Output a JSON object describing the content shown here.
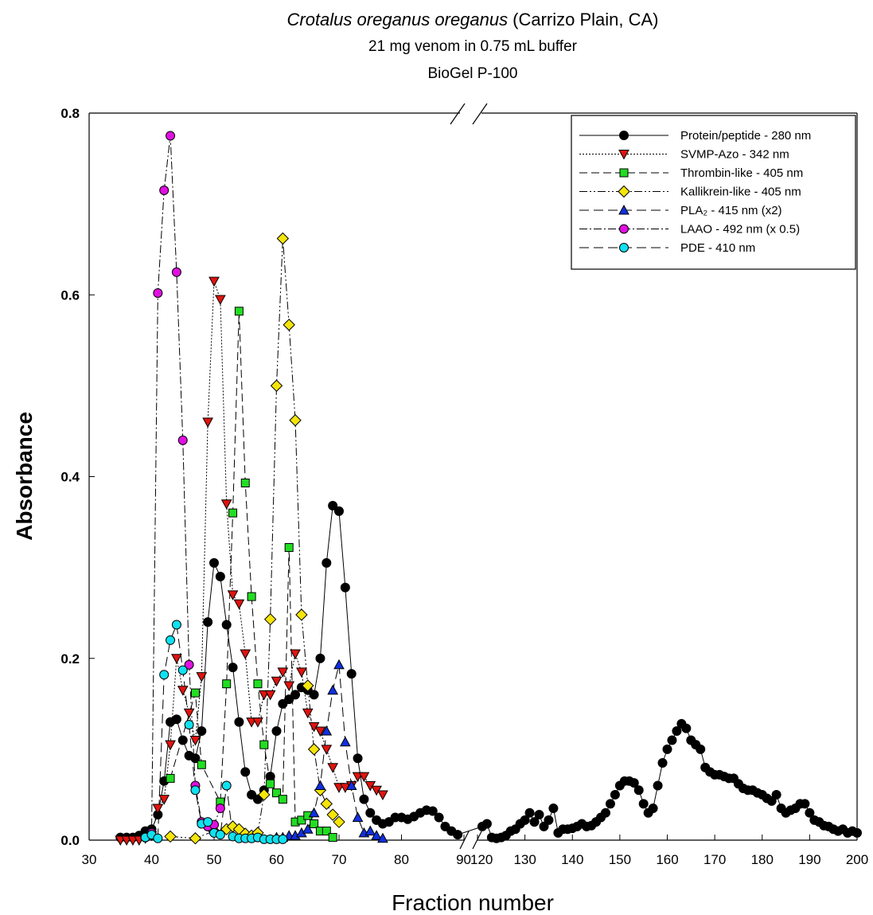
{
  "chart_data": {
    "type": "line",
    "title": [
      "Crotalus oreganus oreganus",
      "(Carrizo Plain, CA)"
    ],
    "subtitle": [
      "21 mg venom in 0.75 mL buffer",
      "BioGel P-100"
    ],
    "x_label": "Fraction number",
    "y_label": "Absorbance",
    "xlim": [
      30,
      200
    ],
    "x_break": [
      90,
      120
    ],
    "xticks": [
      30,
      40,
      50,
      60,
      70,
      80,
      90,
      120,
      130,
      140,
      150,
      160,
      170,
      180,
      190,
      200
    ],
    "ylim": [
      0,
      0.8
    ],
    "yticks": [
      {
        "value": 0,
        "label": "0.0"
      },
      0.2,
      0.4,
      0.6,
      0.8
    ],
    "legend": "upper right",
    "series": [
      {
        "name": "Protein/peptide - 280 nm",
        "color": "#000000",
        "marker": "circle",
        "dash": "none",
        "x": [
          35,
          36,
          37,
          38,
          39,
          40,
          41,
          42,
          43,
          44,
          45,
          46,
          47,
          48,
          49,
          50,
          51,
          52,
          53,
          54,
          55,
          56,
          57,
          58,
          59,
          60,
          61,
          62,
          63,
          64,
          65,
          66,
          67,
          68,
          69,
          70,
          71,
          72,
          73,
          74,
          75,
          76,
          77,
          78,
          79,
          80,
          81,
          82,
          83,
          84,
          85,
          86,
          87,
          88,
          89,
          121,
          122,
          123,
          124,
          125,
          126,
          127,
          128,
          129,
          130,
          131,
          132,
          133,
          134,
          135,
          136,
          137,
          138,
          139,
          140,
          141,
          142,
          143,
          144,
          145,
          146,
          147,
          148,
          149,
          150,
          151,
          152,
          153,
          154,
          155,
          156,
          157,
          158,
          159,
          160,
          161,
          162,
          163,
          164,
          165,
          166,
          167,
          168,
          169,
          170,
          171,
          172,
          173,
          174,
          175,
          176,
          177,
          178,
          179,
          180,
          181,
          182,
          183,
          184,
          185,
          186,
          187,
          188,
          189,
          190,
          191,
          192,
          193,
          194,
          195,
          196,
          197,
          198,
          199,
          200
        ],
        "values": [
          0.003,
          0.003,
          0.003,
          0.005,
          0.01,
          0.012,
          0.028,
          0.065,
          0.13,
          0.133,
          0.11,
          0.093,
          0.09,
          0.12,
          0.24,
          0.305,
          0.29,
          0.237,
          0.19,
          0.13,
          0.075,
          0.05,
          0.045,
          0.055,
          0.07,
          0.12,
          0.15,
          0.155,
          0.16,
          0.168,
          0.165,
          0.16,
          0.2,
          0.305,
          0.368,
          0.362,
          0.278,
          0.183,
          0.09,
          0.045,
          0.03,
          0.022,
          0.018,
          0.02,
          0.025,
          0.025,
          0.023,
          0.026,
          0.03,
          0.033,
          0.032,
          0.025,
          0.015,
          0.01,
          0.006,
          0.015,
          0.018,
          0.003,
          0.002,
          0.003,
          0.005,
          0.01,
          0.012,
          0.018,
          0.022,
          0.03,
          0.02,
          0.028,
          0.015,
          0.022,
          0.035,
          0.008,
          0.012,
          0.012,
          0.013,
          0.015,
          0.018,
          0.015,
          0.016,
          0.02,
          0.025,
          0.03,
          0.04,
          0.05,
          0.06,
          0.065,
          0.065,
          0.063,
          0.055,
          0.04,
          0.03,
          0.035,
          0.06,
          0.085,
          0.1,
          0.11,
          0.12,
          0.128,
          0.123,
          0.11,
          0.105,
          0.1,
          0.08,
          0.075,
          0.072,
          0.072,
          0.07,
          0.068,
          0.068,
          0.062,
          0.057,
          0.055,
          0.055,
          0.052,
          0.05,
          0.046,
          0.043,
          0.05,
          0.035,
          0.03,
          0.033,
          0.035,
          0.04,
          0.04,
          0.03,
          0.022,
          0.02,
          0.016,
          0.015,
          0.012,
          0.01,
          0.012,
          0.008,
          0.01,
          0.008
        ]
      },
      {
        "name": "SVMP-Azo - 342 nm",
        "color": "#e0140f",
        "marker": "triangle-down",
        "dash": "2,2",
        "x": [
          35,
          36,
          37,
          38,
          39,
          40,
          41,
          42,
          43,
          44,
          45,
          46,
          47,
          48,
          49,
          50,
          51,
          52,
          53,
          54,
          55,
          56,
          57,
          58,
          59,
          60,
          61,
          62,
          63,
          64,
          65,
          66,
          67,
          68,
          69,
          70,
          71,
          72,
          73,
          74,
          75,
          76,
          77
        ],
        "values": [
          0,
          0,
          0,
          0,
          0.002,
          0.005,
          0.035,
          0.045,
          0.105,
          0.2,
          0.165,
          0.14,
          0.11,
          0.18,
          0.46,
          0.615,
          0.595,
          0.37,
          0.27,
          0.26,
          0.205,
          0.13,
          0.13,
          0.16,
          0.16,
          0.175,
          0.185,
          0.17,
          0.205,
          0.185,
          0.14,
          0.125,
          0.12,
          0.1,
          0.08,
          0.058,
          0.058,
          0.06,
          0.07,
          0.07,
          0.06,
          0.055,
          0.05
        ]
      },
      {
        "name": "Thrombin-like - 405 nm",
        "color": "#22dd22",
        "marker": "square",
        "dash": "10,5",
        "x": [
          43,
          47,
          48,
          51,
          52,
          53,
          54,
          55,
          56,
          57,
          58,
          59,
          60,
          61,
          62,
          63,
          64,
          65,
          66,
          67,
          68,
          69
        ],
        "values": [
          0.068,
          0.162,
          0.083,
          0.042,
          0.172,
          0.36,
          0.582,
          0.393,
          0.268,
          0.172,
          0.105,
          0.062,
          0.052,
          0.045,
          0.322,
          0.02,
          0.022,
          0.027,
          0.018,
          0.01,
          0.01,
          0.003
        ]
      },
      {
        "name": "Kallikrein-like - 405 nm",
        "color": "#f5e50a",
        "marker": "diamond",
        "dash": "10,3,2,3,2,3",
        "x": [
          43,
          47,
          50,
          52,
          53,
          54,
          55,
          56,
          57,
          58,
          59,
          60,
          61,
          62,
          63,
          64,
          65,
          66,
          67,
          68,
          69,
          70
        ],
        "values": [
          0.004,
          0.002,
          0.01,
          0.012,
          0.015,
          0.012,
          0.007,
          0.005,
          0.008,
          0.05,
          0.243,
          0.5,
          0.662,
          0.567,
          0.462,
          0.248,
          0.17,
          0.1,
          0.055,
          0.04,
          0.028,
          0.02
        ]
      },
      {
        "name": "PLA₂ - 415 nm (x2)",
        "color": "#1030e0",
        "marker": "triangle-up",
        "dash": "12,6",
        "x": [
          60,
          61,
          62,
          63,
          64,
          65,
          66,
          67,
          68,
          69,
          70,
          71,
          72,
          73,
          74,
          75,
          76,
          77
        ],
        "values": [
          0.003,
          0.003,
          0.005,
          0.005,
          0.008,
          0.012,
          0.03,
          0.06,
          0.12,
          0.165,
          0.193,
          0.108,
          0.06,
          0.025,
          0.008,
          0.01,
          0.005,
          0.002
        ]
      },
      {
        "name": "LAAO - 492 nm (x 0.5)",
        "color": "#e010e0",
        "marker": "circle",
        "dash": "10,3,2,3",
        "x": [
          39,
          40,
          41,
          42,
          43,
          44,
          45,
          46,
          47,
          48,
          49,
          50,
          51
        ],
        "values": [
          0.003,
          0.008,
          0.602,
          0.715,
          0.775,
          0.625,
          0.44,
          0.193,
          0.06,
          0.02,
          0.015,
          0.017,
          0.035
        ]
      },
      {
        "name": "PDE - 410 nm",
        "color": "#10e0f0",
        "marker": "circle",
        "dash": "12,6",
        "x": [
          39,
          40,
          41,
          42,
          43,
          44,
          45,
          46,
          47,
          48,
          49,
          50,
          51,
          52,
          53,
          54,
          55,
          56,
          57,
          58,
          59,
          60,
          61
        ],
        "values": [
          0.003,
          0.006,
          0.002,
          0.182,
          0.22,
          0.237,
          0.187,
          0.127,
          0.055,
          0.018,
          0.02,
          0.008,
          0.006,
          0.06,
          0.004,
          0.002,
          0.002,
          0.002,
          0.003,
          0.001,
          0.001,
          0.001,
          0.001
        ]
      }
    ]
  }
}
